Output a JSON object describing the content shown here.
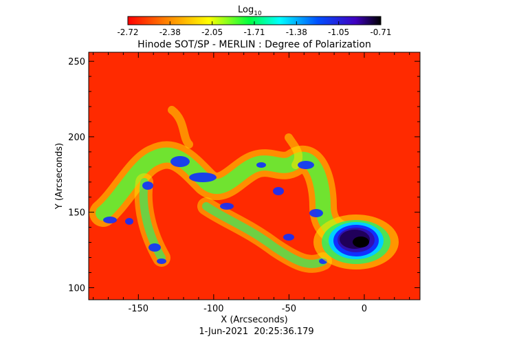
{
  "colorbar": {
    "label_base": "Log",
    "label_sub": "10",
    "ticks": [
      "-2.72",
      "-2.38",
      "-2.05",
      "-1.71",
      "-1.38",
      "-1.05",
      "-0.71"
    ],
    "colors": [
      "#ff0000",
      "#ff8000",
      "#ffff00",
      "#00ff40",
      "#00ffff",
      "#0050ff",
      "#4000c0",
      "#000000"
    ]
  },
  "map": {
    "title": "Hinode SOT/SP - MERLIN : Degree of Polarization",
    "xlabel": "X (Arcseconds)",
    "ylabel": "Y (Arcseconds)",
    "timestamp": "1-Jun-2021  20:25:36.179",
    "xlim": [
      -183,
      37
    ],
    "ylim": [
      92,
      256
    ],
    "xticks": [
      -150,
      -100,
      -50,
      0
    ],
    "yticks": [
      100,
      150,
      200,
      250
    ],
    "background_color": "#ff2a00"
  },
  "chart_data": {
    "type": "heatmap",
    "title": "Hinode SOT/SP - MERLIN : Degree of Polarization",
    "xlabel": "X (Arcseconds)",
    "ylabel": "Y (Arcseconds)",
    "xlim": [
      -183,
      37
    ],
    "ylim": [
      92,
      256
    ],
    "colorbar_range": [
      -2.72,
      -0.71
    ],
    "features": [
      {
        "name": "sunspot umbra",
        "x": -5,
        "y": 132,
        "value": -0.71
      },
      {
        "name": "penumbra",
        "x": -8,
        "y": 130,
        "value": -1.2
      }
    ]
  }
}
